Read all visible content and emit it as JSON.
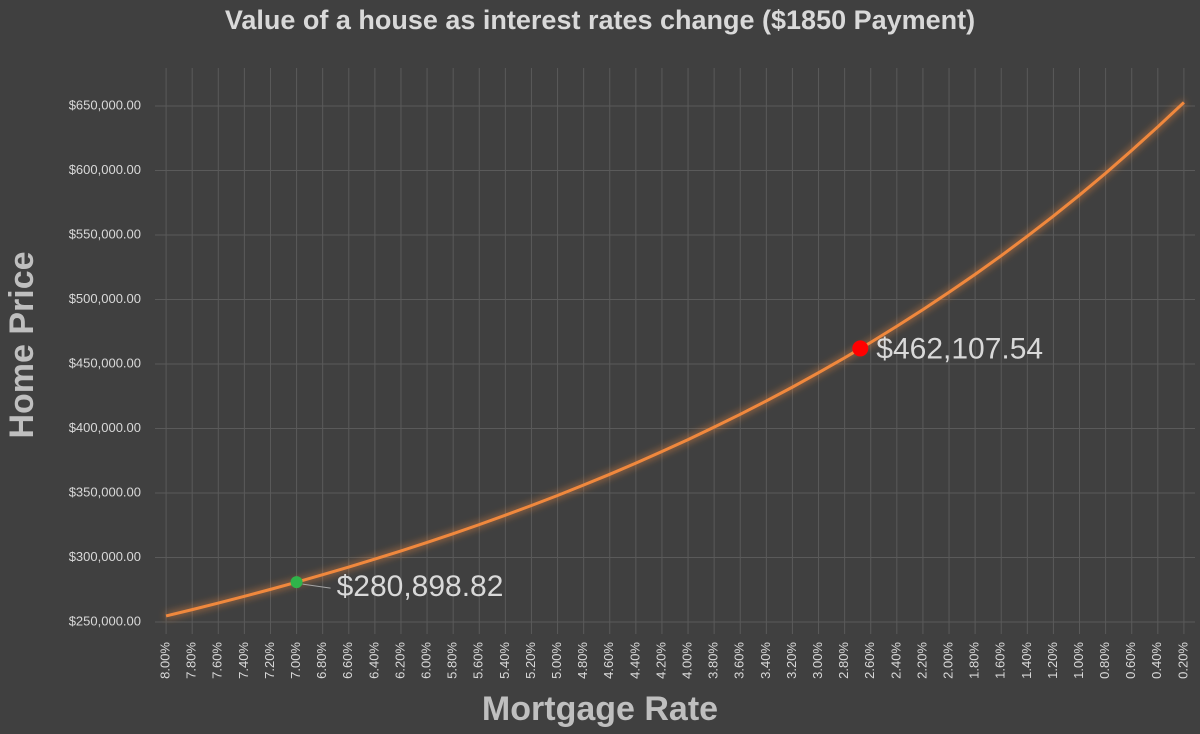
{
  "chart_data": {
    "type": "line",
    "title": "Value of a house as interest rates change ($1850 Payment)",
    "x_label": "Mortgage Rate",
    "y_label": "Home Price",
    "color": "#f0883e",
    "x": [
      8.0,
      7.8,
      7.6,
      7.4,
      7.2,
      7.0,
      6.8,
      6.6,
      6.4,
      6.2,
      6.0,
      5.8,
      5.6,
      5.4,
      5.2,
      5.0,
      4.8,
      4.6,
      4.4,
      4.2,
      4.0,
      3.8,
      3.6,
      3.4,
      3.2,
      3.0,
      2.8,
      2.6,
      2.4,
      2.2,
      2.0,
      1.8,
      1.6,
      1.4,
      1.2,
      1.0,
      0.8,
      0.6,
      0.4,
      0.2
    ],
    "values": [
      254700,
      259600,
      264700,
      269900,
      275300,
      280898.82,
      286700,
      292600,
      298800,
      305100,
      311700,
      318500,
      325500,
      332800,
      340300,
      348100,
      356200,
      364500,
      373200,
      382200,
      391400,
      401100,
      411000,
      421400,
      432100,
      443300,
      454800,
      466800,
      479300,
      492200,
      505600,
      519500,
      534000,
      549100,
      564700,
      581000,
      597900,
      615600,
      633900,
      652800
    ],
    "xlim": [
      8.085,
      0.115
    ],
    "ylim": [
      240700,
      679500
    ],
    "xticks": [
      {
        "value": 8.0,
        "label": "8.00%"
      },
      {
        "value": 7.8,
        "label": "7.80%"
      },
      {
        "value": 7.6,
        "label": "7.60%"
      },
      {
        "value": 7.4,
        "label": "7.40%"
      },
      {
        "value": 7.2,
        "label": "7.20%"
      },
      {
        "value": 7.0,
        "label": "7.00%"
      },
      {
        "value": 6.8,
        "label": "6.80%"
      },
      {
        "value": 6.6,
        "label": "6.60%"
      },
      {
        "value": 6.4,
        "label": "6.40%"
      },
      {
        "value": 6.2,
        "label": "6.20%"
      },
      {
        "value": 6.0,
        "label": "6.00%"
      },
      {
        "value": 5.8,
        "label": "5.80%"
      },
      {
        "value": 5.6,
        "label": "5.60%"
      },
      {
        "value": 5.4,
        "label": "5.40%"
      },
      {
        "value": 5.2,
        "label": "5.20%"
      },
      {
        "value": 5.0,
        "label": "5.00%"
      },
      {
        "value": 4.8,
        "label": "4.80%"
      },
      {
        "value": 4.6,
        "label": "4.60%"
      },
      {
        "value": 4.4,
        "label": "4.40%"
      },
      {
        "value": 4.2,
        "label": "4.20%"
      },
      {
        "value": 4.0,
        "label": "4.00%"
      },
      {
        "value": 3.8,
        "label": "3.80%"
      },
      {
        "value": 3.6,
        "label": "3.60%"
      },
      {
        "value": 3.4,
        "label": "3.40%"
      },
      {
        "value": 3.2,
        "label": "3.20%"
      },
      {
        "value": 3.0,
        "label": "3.00%"
      },
      {
        "value": 2.8,
        "label": "2.80%"
      },
      {
        "value": 2.6,
        "label": "2.60%"
      },
      {
        "value": 2.4,
        "label": "2.40%"
      },
      {
        "value": 2.2,
        "label": "2.20%"
      },
      {
        "value": 2.0,
        "label": "2.00%"
      },
      {
        "value": 1.8,
        "label": "1.80%"
      },
      {
        "value": 1.6,
        "label": "1.60%"
      },
      {
        "value": 1.4,
        "label": "1.40%"
      },
      {
        "value": 1.2,
        "label": "1.20%"
      },
      {
        "value": 1.0,
        "label": "1.00%"
      },
      {
        "value": 0.8,
        "label": "0.80%"
      },
      {
        "value": 0.6,
        "label": "0.60%"
      },
      {
        "value": 0.4,
        "label": "0.40%"
      },
      {
        "value": 0.2,
        "label": "0.20%"
      }
    ],
    "yticks": [
      {
        "value": 250000,
        "label": "$250,000.00"
      },
      {
        "value": 300000,
        "label": "$300,000.00"
      },
      {
        "value": 350000,
        "label": "$350,000.00"
      },
      {
        "value": 400000,
        "label": "$400,000.00"
      },
      {
        "value": 450000,
        "label": "$450,000.00"
      },
      {
        "value": 500000,
        "label": "$500,000.00"
      },
      {
        "value": 550000,
        "label": "$550,000.00"
      },
      {
        "value": 600000,
        "label": "$600,000.00"
      },
      {
        "value": 650000,
        "label": "$650,000.00"
      }
    ],
    "grid": true,
    "annotations": [
      {
        "x": 7.0,
        "value": 280898.82,
        "label": "$280,898.82",
        "color": "#2fb34a"
      },
      {
        "x": 2.68,
        "value": 462107.54,
        "label": "$462,107.54",
        "color": "#ff0000"
      }
    ]
  }
}
